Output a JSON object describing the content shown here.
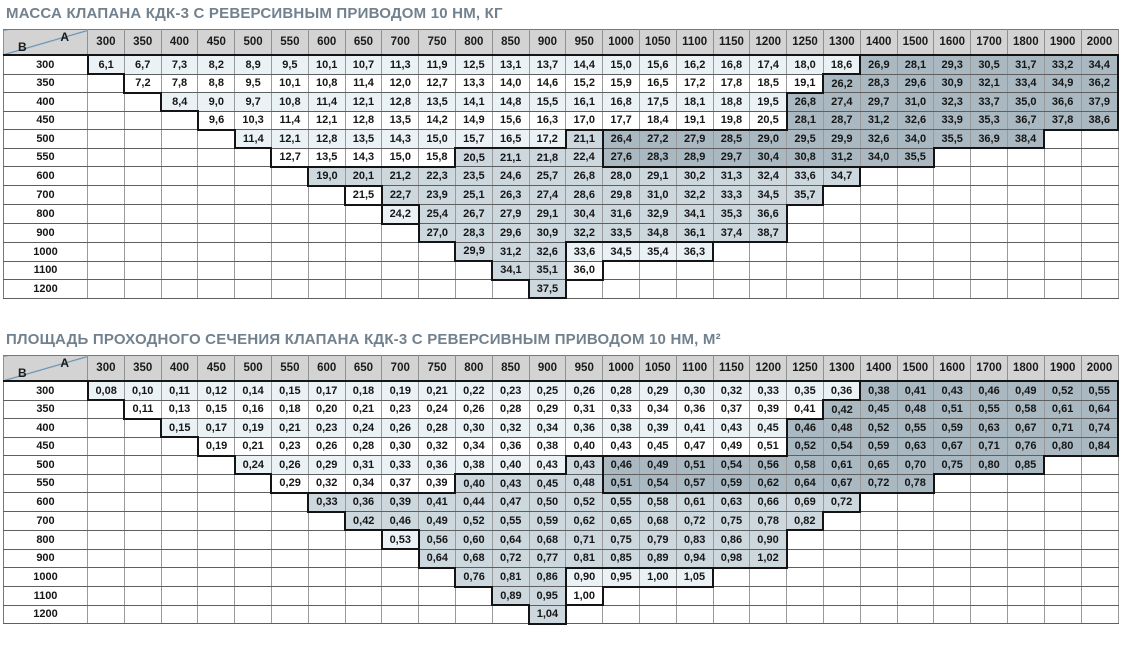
{
  "colors": {
    "title": "#72818e",
    "header_bg": "#d3d3d3",
    "diagonal_line": "#4e87b0",
    "cell_pale": "#ebf2f6",
    "cell_white": "#ffffff",
    "cell_medium": "#ccd7de",
    "cell_dark": "#a9b8c1",
    "thick_border": "#141414"
  },
  "columns": [
    "300",
    "350",
    "400",
    "450",
    "500",
    "550",
    "600",
    "650",
    "700",
    "750",
    "800",
    "850",
    "900",
    "950",
    "1000",
    "1050",
    "1100",
    "1150",
    "1200",
    "1250",
    "1300",
    "1400",
    "1500",
    "1600",
    "1700",
    "1800",
    "1900",
    "2000"
  ],
  "tables": [
    {
      "title": "МАССА КЛАПАНА КДК-3 С РЕВЕРСИВНЫМ ПРИВОДОМ 10 НМ, КГ",
      "corner_a": "A",
      "corner_b": "B",
      "rows": [
        {
          "b": "300",
          "start": 0,
          "values": [
            "6,1",
            "6,7",
            "7,3",
            "8,2",
            "8,9",
            "9,5",
            "10,1",
            "10,7",
            "11,3",
            "11,9",
            "12,5",
            "13,1",
            "13,7",
            "14,4",
            "15,0",
            "15,6",
            "16,2",
            "16,8",
            "17,4",
            "18,0",
            "18,6",
            "26,9",
            "28,1",
            "29,3",
            "30,5",
            "31,7",
            "33,2",
            "34,4"
          ],
          "shades": "lllllllllllllllllllllddddddd"
        },
        {
          "b": "350",
          "start": 1,
          "values": [
            "7,2",
            "7,8",
            "8,8",
            "9,5",
            "10,1",
            "10,8",
            "11,4",
            "12,0",
            "12,7",
            "13,3",
            "14,0",
            "14,6",
            "15,2",
            "15,9",
            "16,5",
            "17,2",
            "17,8",
            "18,5",
            "19,1",
            "26,2",
            "28,3",
            "29,6",
            "30,9",
            "32,1",
            "33,4",
            "34,9",
            "36,2"
          ],
          "shades": "llllllllllllllllllldddddddd"
        },
        {
          "b": "400",
          "start": 2,
          "values": [
            "8,4",
            "9,0",
            "9,7",
            "10,8",
            "11,4",
            "12,1",
            "12,8",
            "13,5",
            "14,1",
            "14,8",
            "15,5",
            "16,1",
            "16,8",
            "17,5",
            "18,1",
            "18,8",
            "19,5",
            "26,8",
            "27,4",
            "29,7",
            "31,0",
            "32,3",
            "33,7",
            "35,0",
            "36,6",
            "37,9"
          ],
          "shades": "lllllllllllllllllddddddddd"
        },
        {
          "b": "450",
          "start": 3,
          "values": [
            "9,6",
            "10,3",
            "11,4",
            "12,1",
            "12,8",
            "13,5",
            "14,2",
            "14,9",
            "15,6",
            "16,3",
            "17,0",
            "17,7",
            "18,4",
            "19,1",
            "19,8",
            "20,5",
            "28,1",
            "28,7",
            "31,2",
            "32,6",
            "33,9",
            "35,3",
            "36,7",
            "37,8",
            "38,6"
          ],
          "shades": "llllllllllllllllddddddddd"
        },
        {
          "b": "500",
          "start": 4,
          "values": [
            "11,4",
            "12,1",
            "12,8",
            "13,5",
            "14,3",
            "15,0",
            "15,7",
            "16,5",
            "17,2",
            "21,1",
            "26,4",
            "27,2",
            "27,9",
            "28,5",
            "29,0",
            "29,5",
            "29,9",
            "32,6",
            "34,0",
            "35,5",
            "36,9",
            "38,4"
          ],
          "shades": "lllllllllmdddddddddddd"
        },
        {
          "b": "550",
          "start": 5,
          "values": [
            "12,7",
            "13,5",
            "14,3",
            "15,0",
            "15,8",
            "20,5",
            "21,1",
            "21,8",
            "22,4",
            "27,6",
            "28,3",
            "28,9",
            "29,7",
            "30,4",
            "30,8",
            "31,2",
            "34,0",
            "35,5"
          ],
          "shades": "lllllmmmmddddddddd"
        },
        {
          "b": "600",
          "start": 6,
          "values": [
            "19,0",
            "20,1",
            "21,2",
            "22,3",
            "23,5",
            "24,6",
            "25,7",
            "26,8",
            "28,0",
            "29,1",
            "30,2",
            "31,3",
            "32,4",
            "33,6",
            "34,7"
          ],
          "shades": "mmmmmmmmmmmmmmm"
        },
        {
          "b": "700",
          "start": 7,
          "values": [
            "21,5",
            "22,7",
            "23,9",
            "25,1",
            "26,3",
            "27,4",
            "28,6",
            "29,8",
            "31,0",
            "32,2",
            "33,3",
            "34,5",
            "35,7"
          ],
          "shades": "lmmmmmmmmmmmm"
        },
        {
          "b": "800",
          "start": 8,
          "values": [
            "24,2",
            "25,4",
            "26,7",
            "27,9",
            "29,1",
            "30,4",
            "31,6",
            "32,9",
            "34,1",
            "35,3",
            "36,6"
          ],
          "shades": "lmmmmmmmmmm"
        },
        {
          "b": "900",
          "start": 9,
          "values": [
            "27,0",
            "28,3",
            "29,6",
            "30,9",
            "32,2",
            "33,5",
            "34,8",
            "36,1",
            "37,4",
            "38,7"
          ],
          "shades": "mmmmmmmmmm"
        },
        {
          "b": "1000",
          "start": 10,
          "values": [
            "29,9",
            "31,2",
            "32,6",
            "33,6",
            "34,5",
            "35,4",
            "36,3"
          ],
          "shades": "mmmllll"
        },
        {
          "b": "1100",
          "start": 11,
          "values": [
            "34,1",
            "35,1",
            "36,0"
          ],
          "shades": "mml"
        },
        {
          "b": "1200",
          "start": 12,
          "values": [
            "37,5"
          ],
          "shades": "m"
        }
      ]
    },
    {
      "title": "ПЛОЩАДЬ ПРОХОДНОГО СЕЧЕНИЯ КЛАПАНА КДК-3 С РЕВЕРСИВНЫМ ПРИВОДОМ 10 НМ, М²",
      "corner_a": "A",
      "corner_b": "B",
      "rows": [
        {
          "b": "300",
          "start": 0,
          "values": [
            "0,08",
            "0,10",
            "0,11",
            "0,12",
            "0,14",
            "0,15",
            "0,17",
            "0,18",
            "0,19",
            "0,21",
            "0,22",
            "0,23",
            "0,25",
            "0,26",
            "0,28",
            "0,29",
            "0,30",
            "0,32",
            "0,33",
            "0,35",
            "0,36",
            "0,38",
            "0,41",
            "0,43",
            "0,46",
            "0,49",
            "0,52",
            "0,55"
          ],
          "shades": "lllllllllllllllllllllddddddd"
        },
        {
          "b": "350",
          "start": 1,
          "values": [
            "0,11",
            "0,13",
            "0,15",
            "0,16",
            "0,18",
            "0,20",
            "0,21",
            "0,23",
            "0,24",
            "0,26",
            "0,28",
            "0,29",
            "0,31",
            "0,33",
            "0,34",
            "0,36",
            "0,37",
            "0,39",
            "0,41",
            "0,42",
            "0,45",
            "0,48",
            "0,51",
            "0,55",
            "0,58",
            "0,61",
            "0,64"
          ],
          "shades": "llllllllllllllllllldddddddd"
        },
        {
          "b": "400",
          "start": 2,
          "values": [
            "0,15",
            "0,17",
            "0,19",
            "0,21",
            "0,23",
            "0,24",
            "0,26",
            "0,28",
            "0,30",
            "0,32",
            "0,34",
            "0,36",
            "0,38",
            "0,39",
            "0,41",
            "0,43",
            "0,45",
            "0,46",
            "0,48",
            "0,52",
            "0,55",
            "0,59",
            "0,63",
            "0,67",
            "0,71",
            "0,74"
          ],
          "shades": "lllllllllllllllllddddddddd"
        },
        {
          "b": "450",
          "start": 3,
          "values": [
            "0,19",
            "0,21",
            "0,23",
            "0,26",
            "0,28",
            "0,30",
            "0,32",
            "0,34",
            "0,36",
            "0,38",
            "0,40",
            "0,43",
            "0,45",
            "0,47",
            "0,49",
            "0,51",
            "0,52",
            "0,54",
            "0,59",
            "0,63",
            "0,67",
            "0,71",
            "0,76",
            "0,80",
            "0,84"
          ],
          "shades": "llllllllllllllllddddddddd"
        },
        {
          "b": "500",
          "start": 4,
          "values": [
            "0,24",
            "0,26",
            "0,29",
            "0,31",
            "0,33",
            "0,36",
            "0,38",
            "0,40",
            "0,43",
            "0,43",
            "0,46",
            "0,49",
            "0,51",
            "0,54",
            "0,56",
            "0,58",
            "0,61",
            "0,65",
            "0,70",
            "0,75",
            "0,80",
            "0,85"
          ],
          "shades": "lllllllllmdddddddddddd"
        },
        {
          "b": "550",
          "start": 5,
          "values": [
            "0,29",
            "0,32",
            "0,34",
            "0,37",
            "0,39",
            "0,40",
            "0,43",
            "0,45",
            "0,48",
            "0,51",
            "0,54",
            "0,57",
            "0,59",
            "0,62",
            "0,64",
            "0,67",
            "0,72",
            "0,78"
          ],
          "shades": "lllllmmmmddddddddd"
        },
        {
          "b": "600",
          "start": 6,
          "values": [
            "0,33",
            "0,36",
            "0,39",
            "0,41",
            "0,44",
            "0,47",
            "0,50",
            "0,52",
            "0,55",
            "0,58",
            "0,61",
            "0,63",
            "0,66",
            "0,69",
            "0,72"
          ],
          "shades": "mmmmmmmmmmmmmmm"
        },
        {
          "b": "700",
          "start": 7,
          "values": [
            "0,42",
            "0,46",
            "0,49",
            "0,52",
            "0,55",
            "0,59",
            "0,62",
            "0,65",
            "0,68",
            "0,72",
            "0,75",
            "0,78",
            "0,82"
          ],
          "shades": "mmmmmmmmmmmmm"
        },
        {
          "b": "800",
          "start": 8,
          "values": [
            "0,53",
            "0,56",
            "0,60",
            "0,64",
            "0,68",
            "0,71",
            "0,75",
            "0,79",
            "0,83",
            "0,86",
            "0,90"
          ],
          "shades": "lmmmmmmmmmm"
        },
        {
          "b": "900",
          "start": 9,
          "values": [
            "0,64",
            "0,68",
            "0,72",
            "0,77",
            "0,81",
            "0,85",
            "0,89",
            "0,94",
            "0,98",
            "1,02"
          ],
          "shades": "mmmmmmmmmm"
        },
        {
          "b": "1000",
          "start": 10,
          "values": [
            "0,76",
            "0,81",
            "0,86",
            "0,90",
            "0,95",
            "1,00",
            "1,05"
          ],
          "shades": "mmmllll"
        },
        {
          "b": "1100",
          "start": 11,
          "values": [
            "0,89",
            "0,95",
            "1,00"
          ],
          "shades": "mml"
        },
        {
          "b": "1200",
          "start": 12,
          "values": [
            "1,04"
          ],
          "shades": "m"
        }
      ]
    }
  ]
}
